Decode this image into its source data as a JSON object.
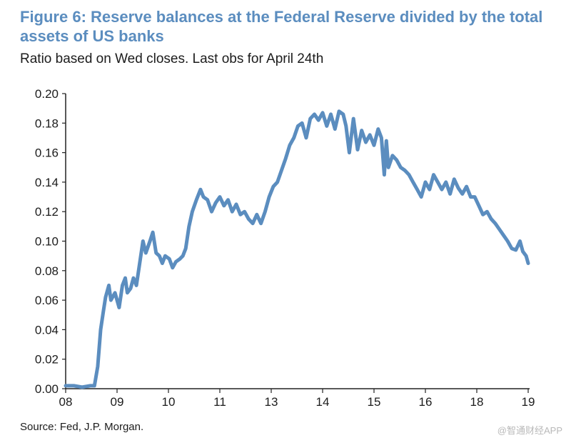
{
  "header": {
    "title": "Figure 6: Reserve balances at the Federal Reserve divided by the total assets of US banks",
    "subtitle": "Ratio based on Wed closes. Last obs for April 24th"
  },
  "footer": {
    "source": "Source: Fed, J.P. Morgan.",
    "watermark": "@智通财经APP"
  },
  "colors": {
    "title": "#5b8dbf",
    "line": "#5b8dbf",
    "axis": "#222222"
  },
  "chart_data": {
    "type": "line",
    "title": "Figure 6: Reserve balances at the Federal Reserve divided by the total assets of US banks",
    "subtitle": "Ratio based on Wed closes. Last obs for April 24th",
    "xlabel": "",
    "ylabel": "",
    "grid": false,
    "legend": "none",
    "xlim": [
      2008.0,
      2019.3
    ],
    "ylim": [
      0,
      0.2
    ],
    "y_ticks": [
      "0.00",
      "0.02",
      "0.04",
      "0.06",
      "0.08",
      "0.10",
      "0.12",
      "0.14",
      "0.16",
      "0.18",
      "0.20"
    ],
    "x_ticks": [
      {
        "label": "08",
        "value": 2008.0
      },
      {
        "label": "09",
        "value": 2009.25
      },
      {
        "label": "10",
        "value": 2010.5
      },
      {
        "label": "11",
        "value": 2011.75
      },
      {
        "label": "13",
        "value": 2013.0
      },
      {
        "label": "14",
        "value": 2014.25
      },
      {
        "label": "15",
        "value": 2015.5
      },
      {
        "label": "16",
        "value": 2016.75
      },
      {
        "label": "18",
        "value": 2018.0
      },
      {
        "label": "19",
        "value": 2019.25
      }
    ],
    "series": [
      {
        "name": "Reserve balances / total assets of US banks",
        "x": [
          2008.0,
          2008.2,
          2008.4,
          2008.6,
          2008.7,
          2008.78,
          2008.85,
          2008.92,
          2008.97,
          2009.05,
          2009.1,
          2009.2,
          2009.3,
          2009.38,
          2009.45,
          2009.5,
          2009.58,
          2009.65,
          2009.72,
          2009.8,
          2009.88,
          2009.95,
          2010.05,
          2010.12,
          2010.2,
          2010.28,
          2010.35,
          2010.42,
          2010.52,
          2010.6,
          2010.68,
          2010.78,
          2010.85,
          2010.92,
          2011.0,
          2011.08,
          2011.18,
          2011.28,
          2011.35,
          2011.45,
          2011.55,
          2011.65,
          2011.75,
          2011.85,
          2011.95,
          2012.05,
          2012.15,
          2012.25,
          2012.35,
          2012.45,
          2012.55,
          2012.65,
          2012.75,
          2012.85,
          2012.95,
          2013.05,
          2013.15,
          2013.25,
          2013.35,
          2013.45,
          2013.55,
          2013.65,
          2013.75,
          2013.85,
          2013.95,
          2014.05,
          2014.15,
          2014.25,
          2014.35,
          2014.45,
          2014.55,
          2014.65,
          2014.75,
          2014.82,
          2014.9,
          2015.0,
          2015.1,
          2015.2,
          2015.3,
          2015.4,
          2015.5,
          2015.6,
          2015.68,
          2015.75,
          2015.8,
          2015.85,
          2015.95,
          2016.05,
          2016.15,
          2016.25,
          2016.35,
          2016.45,
          2016.55,
          2016.65,
          2016.75,
          2016.85,
          2016.95,
          2017.05,
          2017.15,
          2017.25,
          2017.35,
          2017.45,
          2017.55,
          2017.65,
          2017.75,
          2017.85,
          2017.95,
          2018.05,
          2018.15,
          2018.25,
          2018.35,
          2018.45,
          2018.55,
          2018.65,
          2018.75,
          2018.85,
          2018.95,
          2019.05,
          2019.12,
          2019.2,
          2019.25
        ],
        "values": [
          0.002,
          0.002,
          0.001,
          0.002,
          0.002,
          0.015,
          0.04,
          0.053,
          0.062,
          0.07,
          0.06,
          0.065,
          0.055,
          0.07,
          0.075,
          0.065,
          0.068,
          0.075,
          0.07,
          0.085,
          0.1,
          0.092,
          0.1,
          0.106,
          0.092,
          0.09,
          0.085,
          0.09,
          0.088,
          0.082,
          0.086,
          0.088,
          0.09,
          0.095,
          0.11,
          0.12,
          0.128,
          0.135,
          0.13,
          0.128,
          0.12,
          0.126,
          0.13,
          0.124,
          0.128,
          0.12,
          0.125,
          0.118,
          0.12,
          0.115,
          0.112,
          0.118,
          0.112,
          0.12,
          0.13,
          0.137,
          0.14,
          0.148,
          0.156,
          0.165,
          0.17,
          0.178,
          0.18,
          0.17,
          0.183,
          0.186,
          0.182,
          0.187,
          0.178,
          0.186,
          0.176,
          0.188,
          0.186,
          0.178,
          0.16,
          0.183,
          0.162,
          0.175,
          0.167,
          0.172,
          0.165,
          0.176,
          0.17,
          0.145,
          0.168,
          0.15,
          0.158,
          0.155,
          0.15,
          0.148,
          0.145,
          0.14,
          0.135,
          0.13,
          0.14,
          0.135,
          0.145,
          0.14,
          0.135,
          0.14,
          0.132,
          0.142,
          0.136,
          0.132,
          0.137,
          0.13,
          0.13,
          0.124,
          0.118,
          0.12,
          0.115,
          0.112,
          0.108,
          0.104,
          0.1,
          0.095,
          0.094,
          0.1,
          0.093,
          0.09,
          0.085
        ]
      }
    ]
  }
}
